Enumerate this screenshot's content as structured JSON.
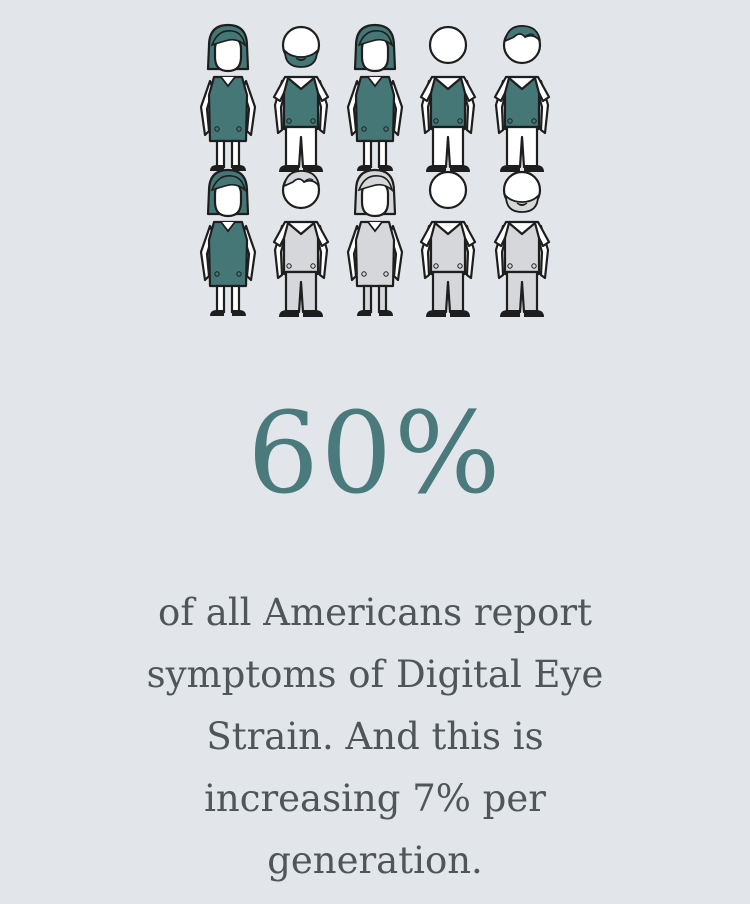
{
  "infographic": {
    "figures": {
      "total": 10,
      "highlighted": 6,
      "rows": [
        [
          {
            "type": "woman",
            "highlighted": true
          },
          {
            "type": "bearded-man",
            "highlighted": true
          },
          {
            "type": "woman",
            "highlighted": true
          },
          {
            "type": "bald-man",
            "highlighted": true
          },
          {
            "type": "quiff-man",
            "highlighted": true
          }
        ],
        [
          {
            "type": "woman",
            "highlighted": true
          },
          {
            "type": "quiff-man",
            "highlighted": false
          },
          {
            "type": "woman",
            "highlighted": false
          },
          {
            "type": "bald-man",
            "highlighted": false
          },
          {
            "type": "bearded-man",
            "highlighted": false
          }
        ]
      ]
    },
    "stat": "60%",
    "caption_lines": [
      "of all Americans report",
      "symptoms of Digital Eye",
      "Strain. And this is",
      "increasing 7% per",
      "generation."
    ]
  },
  "colors": {
    "background": "#e2e6ea",
    "highlight": "#457777",
    "neutral": "#d5d7da",
    "outline": "#1e1e1e",
    "skin": "#ffffff",
    "stat_text": "#4a7a7c",
    "caption_text": "#505559"
  }
}
